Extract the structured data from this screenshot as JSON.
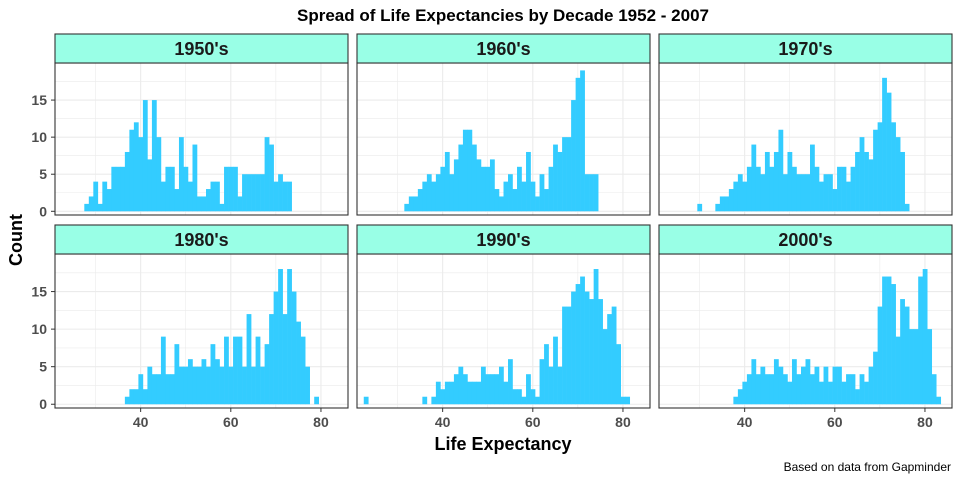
{
  "chart_data": {
    "type": "bar",
    "title": "Spread of Life Expectancies by Decade 1952 - 2007",
    "xlabel": "Life Expectancy",
    "ylabel": "Count",
    "caption": "Based on data from Gapminder",
    "xlim": [
      21,
      86
    ],
    "ylim": [
      -0.5,
      20
    ],
    "x_ticks": [
      40,
      60,
      80
    ],
    "y_ticks": [
      0,
      5,
      10,
      15
    ],
    "bin_width": 1,
    "grid": true,
    "colors": {
      "bar": "#33ccff",
      "strip": "#99ffe6",
      "grid": "#ebebeb",
      "border": "#333333"
    },
    "panels": [
      {
        "label": "1950's",
        "bins": [
          28,
          29,
          30,
          31,
          32,
          33,
          34,
          35,
          36,
          37,
          38,
          39,
          40,
          41,
          42,
          43,
          44,
          45,
          46,
          47,
          48,
          49,
          50,
          51,
          52,
          53,
          54,
          55,
          56,
          57,
          58,
          59,
          60,
          61,
          62,
          63,
          64,
          65,
          66,
          67,
          68,
          69,
          70,
          71,
          72,
          73
        ],
        "counts": [
          1,
          2,
          4,
          1,
          4,
          3,
          6,
          6,
          6,
          8,
          11,
          12,
          10,
          15,
          7,
          15,
          10,
          4,
          6,
          6,
          3,
          10,
          6,
          4,
          9,
          2,
          2,
          3,
          4,
          4,
          1,
          6,
          6,
          6,
          2,
          5,
          5,
          5,
          5,
          5,
          10,
          9,
          4,
          5,
          4,
          4
        ]
      },
      {
        "label": "1960's",
        "bins": [
          32,
          33,
          34,
          35,
          36,
          37,
          38,
          39,
          40,
          41,
          42,
          43,
          44,
          45,
          46,
          47,
          48,
          49,
          50,
          51,
          52,
          53,
          54,
          55,
          56,
          57,
          58,
          59,
          60,
          61,
          62,
          63,
          64,
          65,
          66,
          67,
          68,
          69,
          70,
          71,
          72,
          73,
          74
        ],
        "counts": [
          1,
          2,
          2,
          3,
          4,
          5,
          4,
          5,
          6,
          8,
          5,
          7,
          9,
          11,
          11,
          9,
          7,
          6,
          6,
          7,
          3,
          2,
          4,
          5,
          3,
          6,
          4,
          8,
          4,
          2,
          5,
          3,
          6,
          9,
          8,
          10,
          10,
          15,
          18,
          19,
          5,
          5,
          5
        ]
      },
      {
        "label": "1970's",
        "bins": [
          30,
          31,
          32,
          33,
          34,
          35,
          36,
          37,
          38,
          39,
          40,
          41,
          42,
          43,
          44,
          45,
          46,
          47,
          48,
          49,
          50,
          51,
          52,
          53,
          54,
          55,
          56,
          57,
          58,
          59,
          60,
          61,
          62,
          63,
          64,
          65,
          66,
          67,
          68,
          69,
          70,
          71,
          72,
          73,
          74,
          75,
          76
        ],
        "counts": [
          1,
          0,
          0,
          0,
          1,
          2,
          2,
          3,
          4,
          5,
          4,
          6,
          9,
          6,
          5,
          8,
          6,
          8,
          11,
          5,
          8,
          6,
          5,
          5,
          5,
          9,
          6,
          4,
          5,
          5,
          3,
          6,
          6,
          4,
          6,
          8,
          10,
          8,
          7,
          11,
          12,
          18,
          16,
          12,
          10,
          8,
          1
        ]
      },
      {
        "label": "1980's",
        "bins": [
          37,
          38,
          39,
          40,
          41,
          42,
          43,
          44,
          45,
          46,
          47,
          48,
          49,
          50,
          51,
          52,
          53,
          54,
          55,
          56,
          57,
          58,
          59,
          60,
          61,
          62,
          63,
          64,
          65,
          66,
          67,
          68,
          69,
          70,
          71,
          72,
          73,
          74,
          75,
          76,
          77,
          78,
          79
        ],
        "counts": [
          1,
          2,
          2,
          4,
          2,
          5,
          4,
          4,
          9,
          4,
          4,
          8,
          5,
          5,
          6,
          5,
          5,
          6,
          5,
          8,
          6,
          5,
          9,
          5,
          9,
          9,
          5,
          12,
          5,
          9,
          5,
          8,
          12,
          15,
          18,
          12,
          18,
          15,
          11,
          9,
          5,
          0,
          1
        ]
      },
      {
        "label": "1990's",
        "bins": [
          23,
          24,
          25,
          26,
          27,
          28,
          29,
          30,
          31,
          32,
          33,
          34,
          35,
          36,
          37,
          38,
          39,
          40,
          41,
          42,
          43,
          44,
          45,
          46,
          47,
          48,
          49,
          50,
          51,
          52,
          53,
          54,
          55,
          56,
          57,
          58,
          59,
          60,
          61,
          62,
          63,
          64,
          65,
          66,
          67,
          68,
          69,
          70,
          71,
          72,
          73,
          74,
          75,
          76,
          77,
          78,
          79,
          80,
          81
        ],
        "counts": [
          1,
          0,
          0,
          0,
          0,
          0,
          0,
          0,
          0,
          0,
          0,
          0,
          0,
          1,
          0,
          1,
          3,
          2,
          3,
          3,
          4,
          5,
          4,
          3,
          3,
          3,
          5,
          4,
          4,
          4,
          5,
          3,
          6,
          2,
          2,
          1,
          4,
          2,
          1,
          6,
          8,
          5,
          9,
          5,
          13,
          13,
          15,
          16,
          17,
          15,
          14,
          18,
          14,
          10,
          12,
          13,
          8,
          1,
          1
        ]
      },
      {
        "label": "2000's",
        "bins": [
          38,
          39,
          40,
          41,
          42,
          43,
          44,
          45,
          46,
          47,
          48,
          49,
          50,
          51,
          52,
          53,
          54,
          55,
          56,
          57,
          58,
          59,
          60,
          61,
          62,
          63,
          64,
          65,
          66,
          67,
          68,
          69,
          70,
          71,
          72,
          73,
          74,
          75,
          76,
          77,
          78,
          79,
          80,
          81,
          82,
          83
        ],
        "counts": [
          1,
          2,
          3,
          4,
          6,
          4,
          5,
          4,
          4,
          6,
          5,
          4,
          3,
          6,
          4,
          5,
          6,
          4,
          5,
          3,
          5,
          3,
          5,
          5,
          3,
          4,
          4,
          2,
          4,
          3,
          5,
          7,
          13,
          17,
          17,
          16,
          9,
          14,
          13,
          10,
          10,
          17,
          18,
          10,
          4,
          1
        ]
      }
    ]
  }
}
